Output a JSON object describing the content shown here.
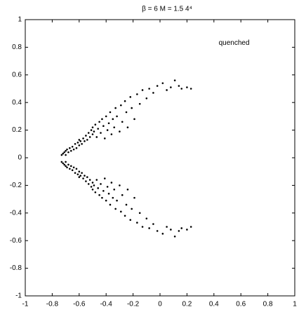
{
  "chart_data": {
    "type": "scatter",
    "title": "β = 6   M = 1.5    4⁴",
    "annotation": {
      "text": "quenched",
      "x": 0.55,
      "y": 0.83
    },
    "xlim": [
      -1,
      1
    ],
    "ylim": [
      -1,
      1
    ],
    "xticks": [
      -1,
      -0.8,
      -0.6,
      -0.4,
      -0.2,
      0,
      0.2,
      0.4,
      0.6,
      0.8,
      1
    ],
    "yticks": [
      -1,
      -0.8,
      -0.6,
      -0.4,
      -0.2,
      0,
      0.2,
      0.4,
      0.6,
      0.8,
      1
    ],
    "grid": false,
    "series": [
      {
        "color": "#000000",
        "x": [
          -0.73,
          -0.72,
          -0.71,
          -0.7,
          -0.7,
          -0.69,
          -0.68,
          -0.67,
          -0.66,
          -0.65,
          -0.64,
          -0.63,
          -0.62,
          -0.61,
          -0.6,
          -0.6,
          -0.59,
          -0.58,
          -0.57,
          -0.56,
          -0.55,
          -0.54,
          -0.53,
          -0.52,
          -0.51,
          -0.5,
          -0.5,
          -0.49,
          -0.48,
          -0.47,
          -0.46,
          -0.45,
          -0.44,
          -0.43,
          -0.42,
          -0.41,
          -0.4,
          -0.39,
          -0.38,
          -0.37,
          -0.36,
          -0.35,
          -0.34,
          -0.33,
          -0.32,
          -0.3,
          -0.29,
          -0.28,
          -0.26,
          -0.25,
          -0.24,
          -0.22,
          -0.21,
          -0.19,
          -0.17,
          -0.15,
          -0.13,
          -0.1,
          -0.08,
          -0.05,
          -0.02,
          0.02,
          0.05,
          0.08,
          0.11,
          0.14,
          0.16,
          0.2,
          0.23,
          -0.73,
          -0.72,
          -0.71,
          -0.7,
          -0.7,
          -0.69,
          -0.68,
          -0.67,
          -0.66,
          -0.65,
          -0.64,
          -0.63,
          -0.62,
          -0.61,
          -0.6,
          -0.6,
          -0.59,
          -0.58,
          -0.57,
          -0.56,
          -0.55,
          -0.54,
          -0.53,
          -0.52,
          -0.51,
          -0.5,
          -0.5,
          -0.49,
          -0.48,
          -0.47,
          -0.46,
          -0.45,
          -0.44,
          -0.43,
          -0.42,
          -0.41,
          -0.4,
          -0.39,
          -0.38,
          -0.37,
          -0.36,
          -0.35,
          -0.34,
          -0.33,
          -0.32,
          -0.3,
          -0.29,
          -0.28,
          -0.26,
          -0.25,
          -0.24,
          -0.22,
          -0.21,
          -0.19,
          -0.17,
          -0.15,
          -0.13,
          -0.1,
          -0.08,
          -0.05,
          -0.02,
          0.02,
          0.05,
          0.08,
          0.11,
          0.14,
          0.16,
          0.2,
          0.23
        ],
        "y": [
          0.02,
          0.03,
          0.04,
          0.02,
          0.05,
          0.06,
          0.04,
          0.07,
          0.05,
          0.08,
          0.06,
          0.1,
          0.07,
          0.11,
          0.09,
          0.13,
          0.12,
          0.1,
          0.14,
          0.12,
          0.16,
          0.13,
          0.18,
          0.15,
          0.2,
          0.17,
          0.22,
          0.19,
          0.24,
          0.15,
          0.21,
          0.26,
          0.18,
          0.28,
          0.23,
          0.14,
          0.3,
          0.2,
          0.25,
          0.33,
          0.17,
          0.28,
          0.22,
          0.36,
          0.3,
          0.19,
          0.38,
          0.26,
          0.41,
          0.33,
          0.22,
          0.44,
          0.36,
          0.28,
          0.46,
          0.39,
          0.49,
          0.43,
          0.5,
          0.47,
          0.52,
          0.54,
          0.49,
          0.51,
          0.56,
          0.52,
          0.5,
          0.51,
          0.5,
          -0.03,
          -0.04,
          -0.05,
          -0.03,
          -0.06,
          -0.07,
          -0.05,
          -0.08,
          -0.06,
          -0.09,
          -0.07,
          -0.11,
          -0.08,
          -0.12,
          -0.1,
          -0.14,
          -0.13,
          -0.11,
          -0.15,
          -0.13,
          -0.17,
          -0.14,
          -0.19,
          -0.16,
          -0.21,
          -0.18,
          -0.23,
          -0.2,
          -0.25,
          -0.16,
          -0.22,
          -0.27,
          -0.19,
          -0.29,
          -0.24,
          -0.15,
          -0.31,
          -0.21,
          -0.26,
          -0.34,
          -0.18,
          -0.29,
          -0.23,
          -0.37,
          -0.31,
          -0.2,
          -0.39,
          -0.27,
          -0.42,
          -0.34,
          -0.23,
          -0.45,
          -0.37,
          -0.29,
          -0.47,
          -0.4,
          -0.5,
          -0.44,
          -0.51,
          -0.48,
          -0.53,
          -0.55,
          -0.5,
          -0.52,
          -0.57,
          -0.53,
          -0.51,
          -0.52,
          -0.5
        ]
      }
    ]
  }
}
